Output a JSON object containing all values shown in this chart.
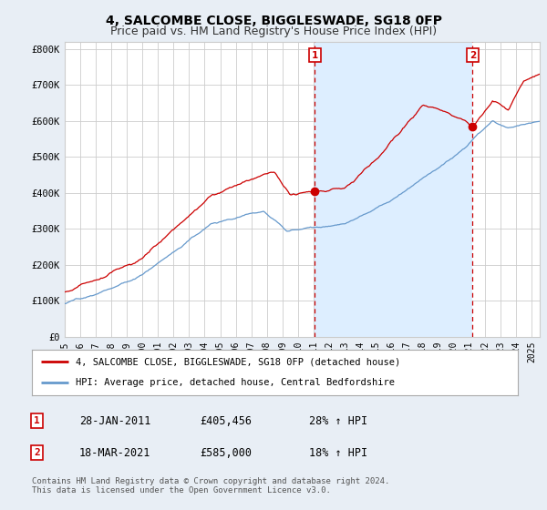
{
  "title": "4, SALCOMBE CLOSE, BIGGLESWADE, SG18 0FP",
  "subtitle": "Price paid vs. HM Land Registry's House Price Index (HPI)",
  "title_fontsize": 10,
  "subtitle_fontsize": 9,
  "ylabel_ticks": [
    "£0",
    "£100K",
    "£200K",
    "£300K",
    "£400K",
    "£500K",
    "£600K",
    "£700K",
    "£800K"
  ],
  "ytick_vals": [
    0,
    100000,
    200000,
    300000,
    400000,
    500000,
    600000,
    700000,
    800000
  ],
  "ylim": [
    0,
    820000
  ],
  "xlim_start": 1995.0,
  "xlim_end": 2025.5,
  "background_color": "#e8eef5",
  "plot_bg_color": "#ffffff",
  "grid_color": "#cccccc",
  "red_line_color": "#cc0000",
  "blue_line_color": "#6699cc",
  "shade_color": "#ddeeff",
  "marker1_date": 2011.08,
  "marker1_price": 405456,
  "marker2_date": 2021.21,
  "marker2_price": 585000,
  "legend_red_label": "4, SALCOMBE CLOSE, BIGGLESWADE, SG18 0FP (detached house)",
  "legend_blue_label": "HPI: Average price, detached house, Central Bedfordshire",
  "table_rows": [
    {
      "num": "1",
      "date": "28-JAN-2011",
      "price": "£405,456",
      "change": "28% ↑ HPI"
    },
    {
      "num": "2",
      "date": "18-MAR-2021",
      "price": "£585,000",
      "change": "18% ↑ HPI"
    }
  ],
  "footer": "Contains HM Land Registry data © Crown copyright and database right 2024.\nThis data is licensed under the Open Government Licence v3.0.",
  "xtick_years": [
    1995,
    1996,
    1997,
    1998,
    1999,
    2000,
    2001,
    2002,
    2003,
    2004,
    2005,
    2006,
    2007,
    2008,
    2009,
    2010,
    2011,
    2012,
    2013,
    2014,
    2015,
    2016,
    2017,
    2018,
    2019,
    2020,
    2021,
    2022,
    2023,
    2024,
    2025
  ]
}
